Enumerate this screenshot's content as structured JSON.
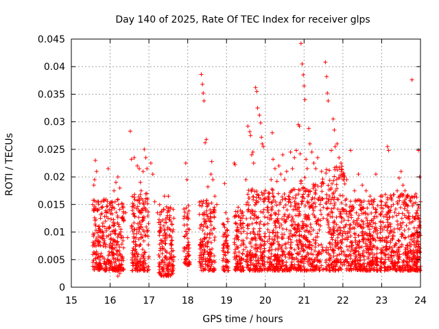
{
  "chart_data": {
    "type": "scatter",
    "title": "Day 140 of 2025, Rate Of TEC Index for receiver glps",
    "xlabel": "GPS time / hours",
    "ylabel": "ROTI / TECUs",
    "xlim": [
      15,
      24
    ],
    "ylim": [
      0,
      0.045
    ],
    "xticks": [
      15,
      16,
      17,
      18,
      19,
      20,
      21,
      22,
      23,
      24
    ],
    "xtick_labels": [
      "15",
      "16",
      "17",
      "18",
      "19",
      "20",
      "21",
      "22",
      "23",
      "24"
    ],
    "yticks": [
      0,
      0.005,
      0.01,
      0.015,
      0.02,
      0.025,
      0.03,
      0.035,
      0.04,
      0.045
    ],
    "ytick_labels": [
      "0",
      "0.005",
      "0.01",
      "0.015",
      "0.02",
      "0.025",
      "0.03",
      "0.035",
      "0.04",
      "0.045"
    ],
    "grid": true,
    "marker": "+",
    "marker_color": "#ff0000",
    "series": [
      {
        "name": "ROTI",
        "points": [
          [
            15.58,
            0.0185
          ],
          [
            15.6,
            0.0195
          ],
          [
            15.62,
            0.023
          ],
          [
            15.65,
            0.021
          ],
          [
            15.7,
            0.0155
          ],
          [
            15.75,
            0.0125
          ],
          [
            15.8,
            0.0145
          ],
          [
            15.85,
            0.011
          ],
          [
            15.9,
            0.0135
          ],
          [
            15.95,
            0.0215
          ],
          [
            16.05,
            0.0155
          ],
          [
            16.1,
            0.0175
          ],
          [
            16.15,
            0.019
          ],
          [
            16.2,
            0.02
          ],
          [
            16.25,
            0.018
          ],
          [
            16.08,
            0.0035
          ],
          [
            16.2,
            0.002
          ],
          [
            16.25,
            0.0025
          ],
          [
            16.35,
            0.012
          ],
          [
            16.4,
            0.0135
          ],
          [
            16.45,
            0.009
          ],
          [
            16.52,
            0.0283
          ],
          [
            16.55,
            0.0232
          ],
          [
            16.62,
            0.0235
          ],
          [
            16.7,
            0.022
          ],
          [
            16.75,
            0.0215
          ],
          [
            16.78,
            0.019
          ],
          [
            16.8,
            0.0175
          ],
          [
            16.85,
            0.021
          ],
          [
            16.88,
            0.025
          ],
          [
            16.92,
            0.0235
          ],
          [
            16.95,
            0.0215
          ],
          [
            17.05,
            0.0225
          ],
          [
            17.1,
            0.0205
          ],
          [
            17.15,
            0.0155
          ],
          [
            17.22,
            0.0135
          ],
          [
            17.3,
            0.0025
          ],
          [
            17.32,
            0.0022
          ],
          [
            17.4,
            0.0165
          ],
          [
            17.5,
            0.0165
          ],
          [
            17.55,
            0.0145
          ],
          [
            17.6,
            0.0085
          ],
          [
            17.95,
            0.0225
          ],
          [
            17.98,
            0.0195
          ],
          [
            18.02,
            0.0148
          ],
          [
            18.35,
            0.0386
          ],
          [
            18.38,
            0.0368
          ],
          [
            18.4,
            0.0352
          ],
          [
            18.42,
            0.0338
          ],
          [
            18.45,
            0.0262
          ],
          [
            18.48,
            0.0268
          ],
          [
            18.52,
            0.0182
          ],
          [
            18.6,
            0.0205
          ],
          [
            18.62,
            0.0228
          ],
          [
            18.65,
            0.0195
          ],
          [
            18.7,
            0.0165
          ],
          [
            18.75,
            0.015
          ],
          [
            18.95,
            0.0188
          ],
          [
            18.98,
            0.0135
          ],
          [
            19.0,
            0.0045
          ],
          [
            19.05,
            0.003
          ],
          [
            19.2,
            0.0225
          ],
          [
            19.22,
            0.0222
          ],
          [
            19.3,
            0.0145
          ],
          [
            19.4,
            0.0125
          ],
          [
            19.5,
            0.0195
          ],
          [
            19.55,
            0.0292
          ],
          [
            19.6,
            0.0282
          ],
          [
            19.62,
            0.0275
          ],
          [
            19.65,
            0.024
          ],
          [
            19.68,
            0.0245
          ],
          [
            19.7,
            0.0225
          ],
          [
            19.75,
            0.0362
          ],
          [
            19.78,
            0.0355
          ],
          [
            19.8,
            0.0325
          ],
          [
            19.85,
            0.0312
          ],
          [
            19.88,
            0.0298
          ],
          [
            19.9,
            0.0272
          ],
          [
            19.92,
            0.026
          ],
          [
            19.95,
            0.0255
          ],
          [
            20.0,
            0.0175
          ],
          [
            20.05,
            0.0145
          ],
          [
            20.1,
            0.017
          ],
          [
            20.15,
            0.0195
          ],
          [
            20.18,
            0.028
          ],
          [
            20.2,
            0.0232
          ],
          [
            20.25,
            0.0215
          ],
          [
            20.3,
            0.0192
          ],
          [
            20.35,
            0.022
          ],
          [
            20.4,
            0.0205
          ],
          [
            20.45,
            0.024
          ],
          [
            20.5,
            0.0195
          ],
          [
            20.55,
            0.021
          ],
          [
            20.6,
            0.0165
          ],
          [
            20.65,
            0.0245
          ],
          [
            20.7,
            0.0215
          ],
          [
            20.75,
            0.0235
          ],
          [
            20.8,
            0.0248
          ],
          [
            20.85,
            0.0295
          ],
          [
            20.88,
            0.0292
          ],
          [
            20.9,
            0.0242
          ],
          [
            20.92,
            0.0442
          ],
          [
            20.95,
            0.0405
          ],
          [
            20.98,
            0.0385
          ],
          [
            21.0,
            0.0365
          ],
          [
            21.02,
            0.034
          ],
          [
            21.05,
            0.0232
          ],
          [
            21.08,
            0.0215
          ],
          [
            21.12,
            0.0288
          ],
          [
            21.15,
            0.026
          ],
          [
            21.2,
            0.0245
          ],
          [
            21.25,
            0.0225
          ],
          [
            21.3,
            0.0215
          ],
          [
            21.35,
            0.0235
          ],
          [
            21.45,
            0.021
          ],
          [
            21.5,
            0.0188
          ],
          [
            21.55,
            0.0408
          ],
          [
            21.58,
            0.0382
          ],
          [
            21.6,
            0.0352
          ],
          [
            21.62,
            0.0338
          ],
          [
            21.65,
            0.0212
          ],
          [
            21.7,
            0.0248
          ],
          [
            21.75,
            0.0305
          ],
          [
            21.78,
            0.0285
          ],
          [
            21.8,
            0.0255
          ],
          [
            21.85,
            0.026
          ],
          [
            21.9,
            0.0235
          ],
          [
            21.95,
            0.0225
          ],
          [
            22.0,
            0.0205
          ],
          [
            22.1,
            0.0195
          ],
          [
            22.2,
            0.0248
          ],
          [
            22.3,
            0.0175
          ],
          [
            22.4,
            0.0205
          ],
          [
            22.5,
            0.0185
          ],
          [
            22.6,
            0.0175
          ],
          [
            22.7,
            0.0165
          ],
          [
            22.85,
            0.0205
          ],
          [
            22.9,
            0.0148
          ],
          [
            23.0,
            0.0155
          ],
          [
            23.1,
            0.0148
          ],
          [
            23.15,
            0.0255
          ],
          [
            23.18,
            0.0248
          ],
          [
            23.3,
            0.015
          ],
          [
            23.4,
            0.0175
          ],
          [
            23.45,
            0.0198
          ],
          [
            23.5,
            0.021
          ],
          [
            23.55,
            0.0185
          ],
          [
            23.6,
            0.0175
          ],
          [
            23.65,
            0.0165
          ],
          [
            23.75,
            0.0155
          ],
          [
            23.78,
            0.0376
          ],
          [
            23.85,
            0.0125
          ],
          [
            23.95,
            0.0248
          ],
          [
            23.98,
            0.02
          ],
          [
            24.0,
            0.0155
          ]
        ]
      }
    ],
    "dense_clusters": [
      {
        "x_range": [
          15.55,
          16.35
        ],
        "y_range": [
          0.003,
          0.016
        ]
      },
      {
        "x_range": [
          16.55,
          17.0
        ],
        "y_range": [
          0.003,
          0.017
        ]
      },
      {
        "x_range": [
          17.25,
          17.65
        ],
        "y_range": [
          0.002,
          0.015
        ]
      },
      {
        "x_range": [
          17.9,
          18.05
        ],
        "y_range": [
          0.004,
          0.015
        ]
      },
      {
        "x_range": [
          18.3,
          18.7
        ],
        "y_range": [
          0.003,
          0.016
        ]
      },
      {
        "x_range": [
          18.9,
          19.05
        ],
        "y_range": [
          0.003,
          0.013
        ]
      },
      {
        "x_range": [
          19.2,
          19.45
        ],
        "y_range": [
          0.003,
          0.014
        ]
      },
      {
        "x_range": [
          19.5,
          20.0
        ],
        "y_range": [
          0.003,
          0.018
        ]
      },
      {
        "x_range": [
          20.05,
          20.9
        ],
        "y_range": [
          0.003,
          0.018
        ]
      },
      {
        "x_range": [
          20.9,
          21.5
        ],
        "y_range": [
          0.003,
          0.02
        ]
      },
      {
        "x_range": [
          21.55,
          22.05
        ],
        "y_range": [
          0.003,
          0.022
        ]
      },
      {
        "x_range": [
          22.05,
          22.9
        ],
        "y_range": [
          0.003,
          0.016
        ]
      },
      {
        "x_range": [
          22.95,
          23.95
        ],
        "y_range": [
          0.003,
          0.017
        ]
      },
      {
        "x_range": [
          23.9,
          24.0
        ],
        "y_range": [
          0.003,
          0.015
        ]
      }
    ]
  }
}
